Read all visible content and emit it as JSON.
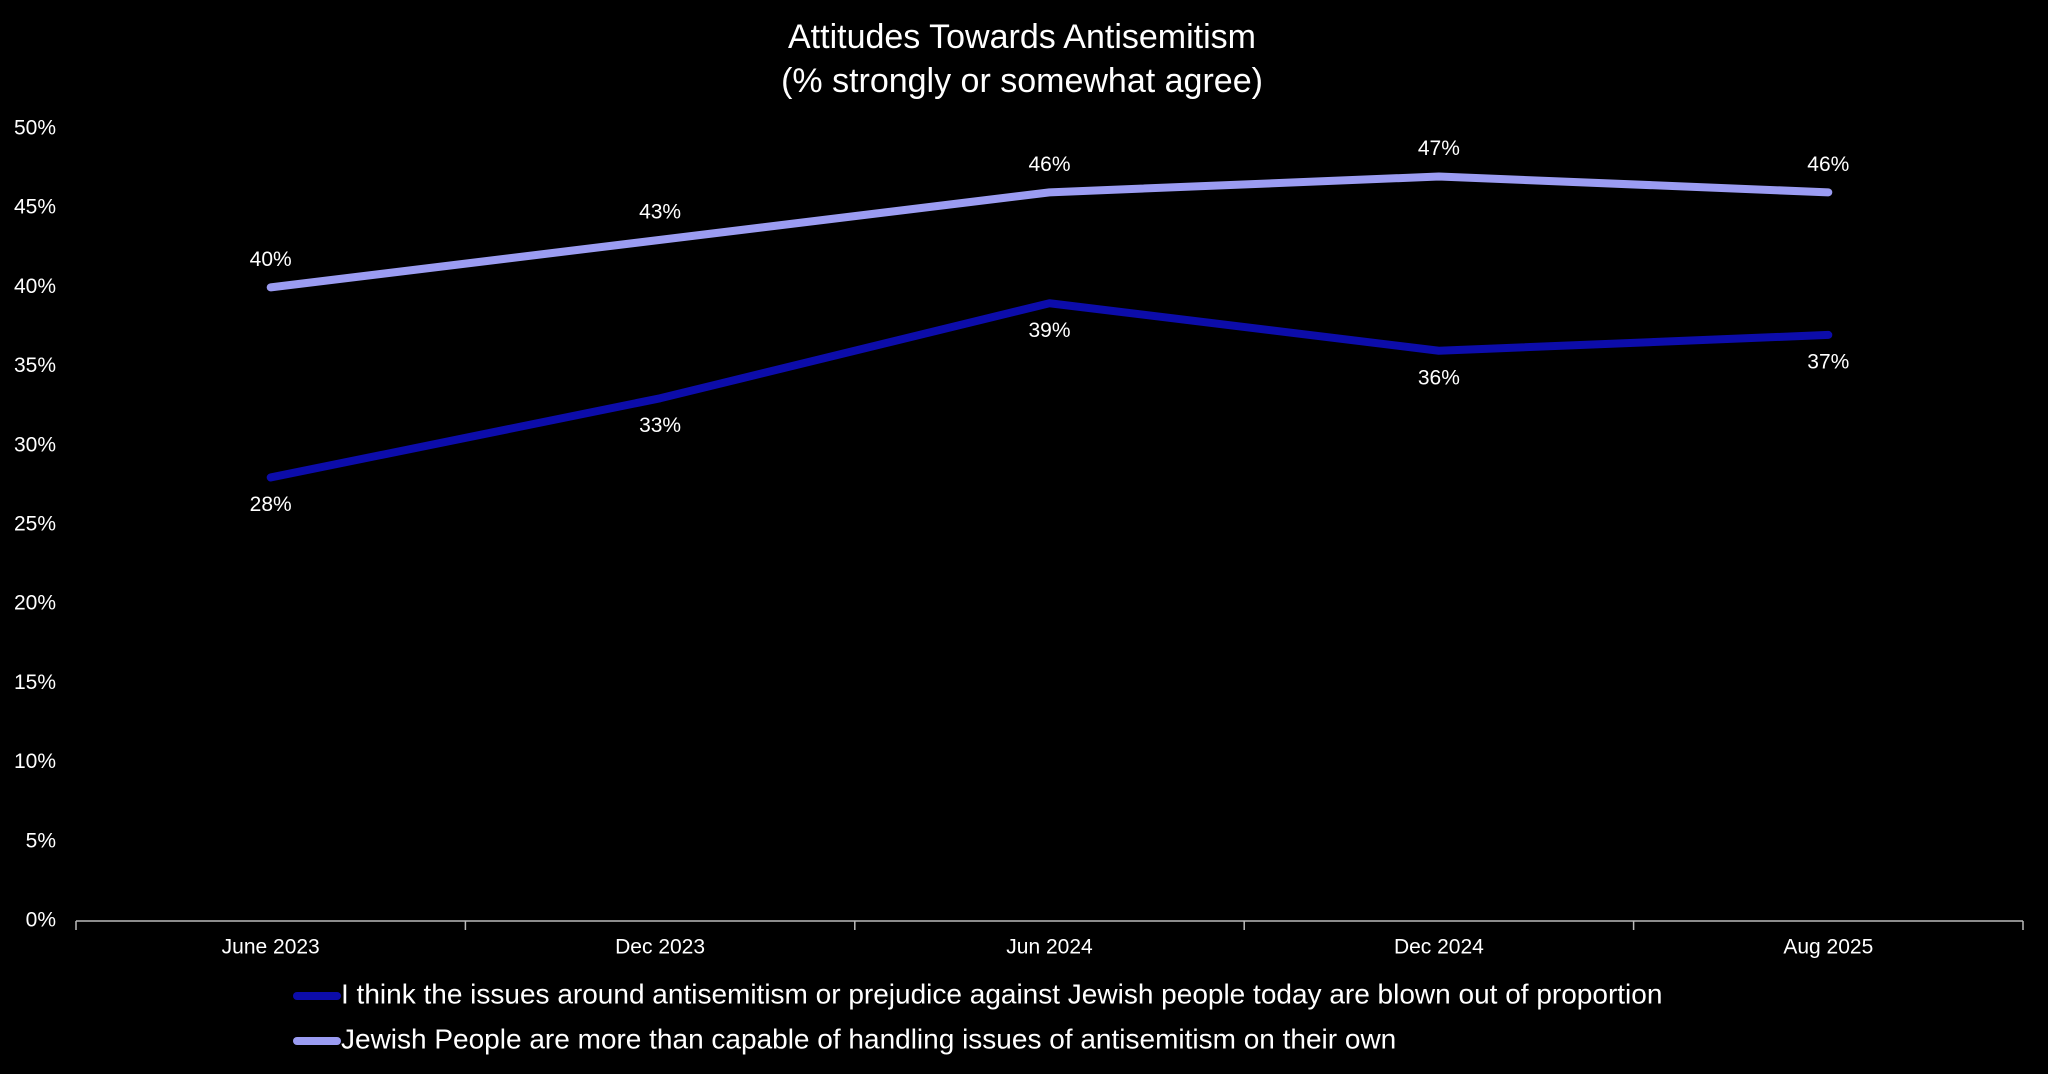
{
  "chart_data": {
    "type": "line",
    "title": "Attitudes Towards Antisemitism",
    "subtitle": "(% strongly or somewhat agree)",
    "categories": [
      "June 2023",
      "Dec 2023",
      "Jun 2024",
      "Dec 2024",
      "Aug 2025"
    ],
    "series": [
      {
        "name": "I think the issues around antisemitism or prejudice against Jewish people today are blown out of proportion",
        "color": "#0c0caa",
        "values": [
          28,
          33,
          39,
          36,
          37
        ],
        "value_labels": [
          "28%",
          "33%",
          "39%",
          "36%",
          "37%"
        ],
        "label_position": "below"
      },
      {
        "name": "Jewish People are more than capable of handling issues of antisemitism on their own",
        "color": "#9b9cf2",
        "values": [
          40,
          43,
          46,
          47,
          46
        ],
        "value_labels": [
          "40%",
          "43%",
          "46%",
          "47%",
          "46%"
        ],
        "label_position": "above"
      }
    ],
    "ylim": [
      0,
      50
    ],
    "yticks": [
      {
        "value": 0,
        "label": "0%"
      },
      {
        "value": 5,
        "label": "5%"
      },
      {
        "value": 10,
        "label": "10%"
      },
      {
        "value": 15,
        "label": "15%"
      },
      {
        "value": 20,
        "label": "20%"
      },
      {
        "value": 25,
        "label": "25%"
      },
      {
        "value": 30,
        "label": "30%"
      },
      {
        "value": 35,
        "label": "35%"
      },
      {
        "value": 40,
        "label": "40%"
      },
      {
        "value": 45,
        "label": "45%"
      },
      {
        "value": 50,
        "label": "50%"
      }
    ],
    "grid": false,
    "legend": "bottom"
  }
}
